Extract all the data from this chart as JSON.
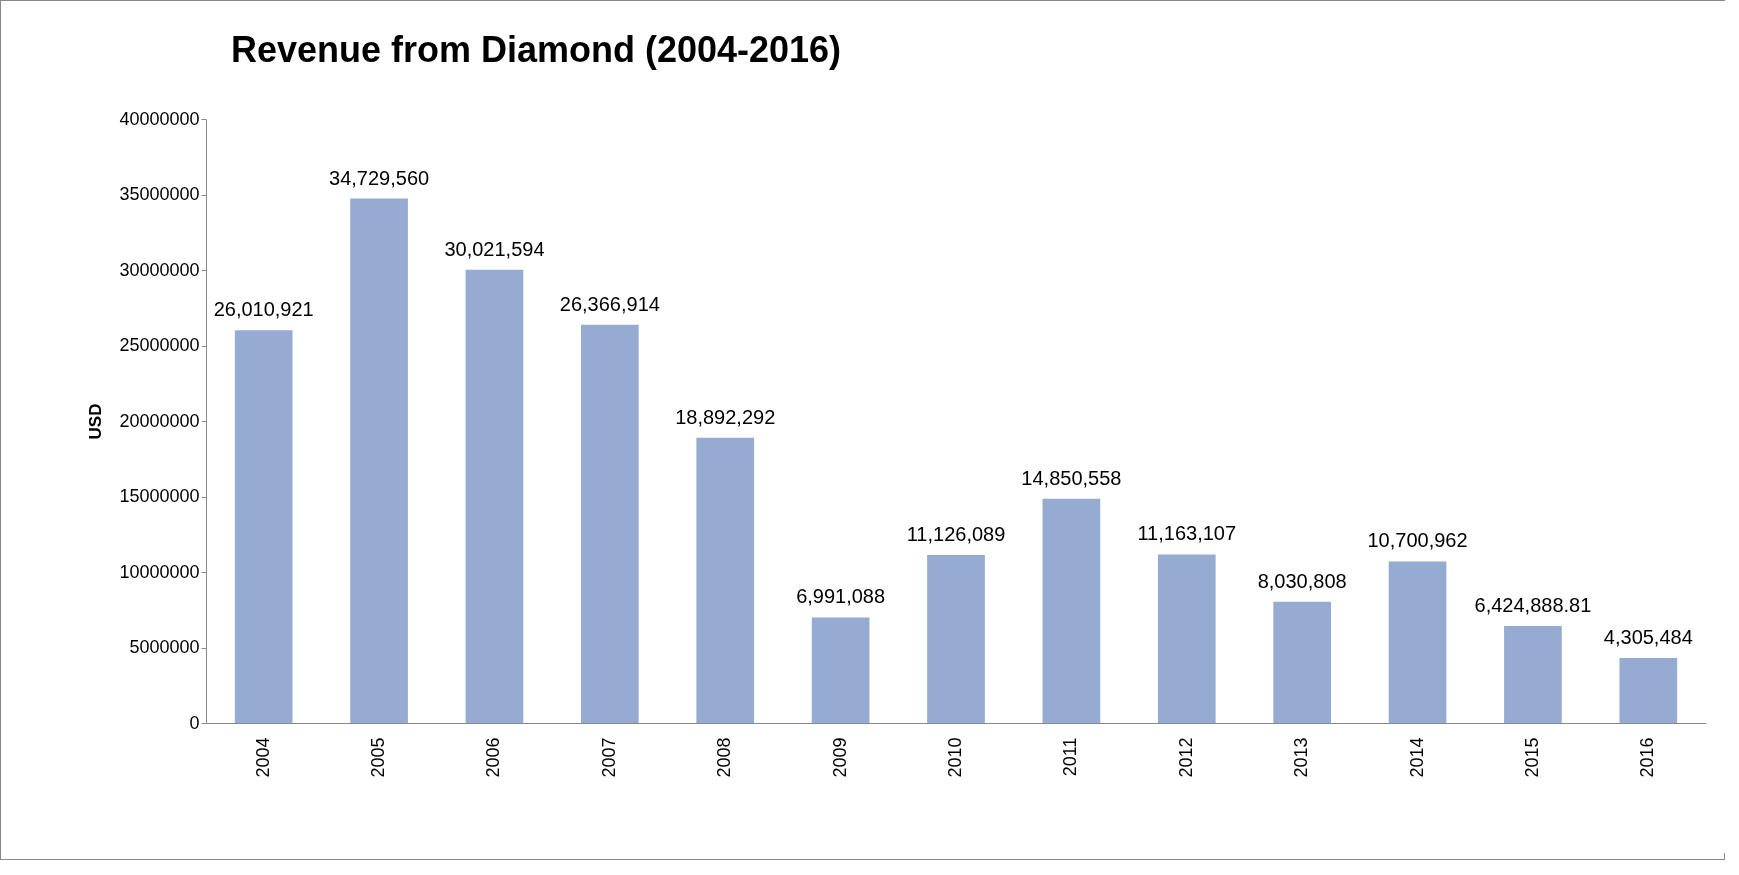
{
  "chart_data": {
    "type": "bar",
    "title": "Revenue from Diamond (2004-2016)",
    "ylabel": "USD",
    "categories": [
      "2004",
      "2005",
      "2006",
      "2007",
      "2008",
      "2009",
      "2010",
      "2011",
      "2012",
      "2013",
      "2014",
      "2015",
      "2016"
    ],
    "values": [
      26010921,
      34729560,
      30021594,
      26366914,
      18892292,
      6991088,
      11126089,
      14850558,
      11163107,
      8030808,
      10700962,
      6424888.81,
      4305484
    ],
    "value_labels": [
      "26,010,921",
      "34,729,560",
      "30,021,594",
      "26,366,914",
      "18,892,292",
      "6,991,088",
      "11,126,089",
      "14,850,558",
      "11,163,107",
      "8,030,808",
      "10,700,962",
      "6,424,888.81",
      "4,305,484"
    ],
    "color": "#95abd2",
    "ylim": [
      0,
      40000000
    ],
    "yticks": [
      0,
      5000000,
      10000000,
      15000000,
      20000000,
      25000000,
      30000000,
      35000000,
      40000000
    ],
    "grid": false
  }
}
